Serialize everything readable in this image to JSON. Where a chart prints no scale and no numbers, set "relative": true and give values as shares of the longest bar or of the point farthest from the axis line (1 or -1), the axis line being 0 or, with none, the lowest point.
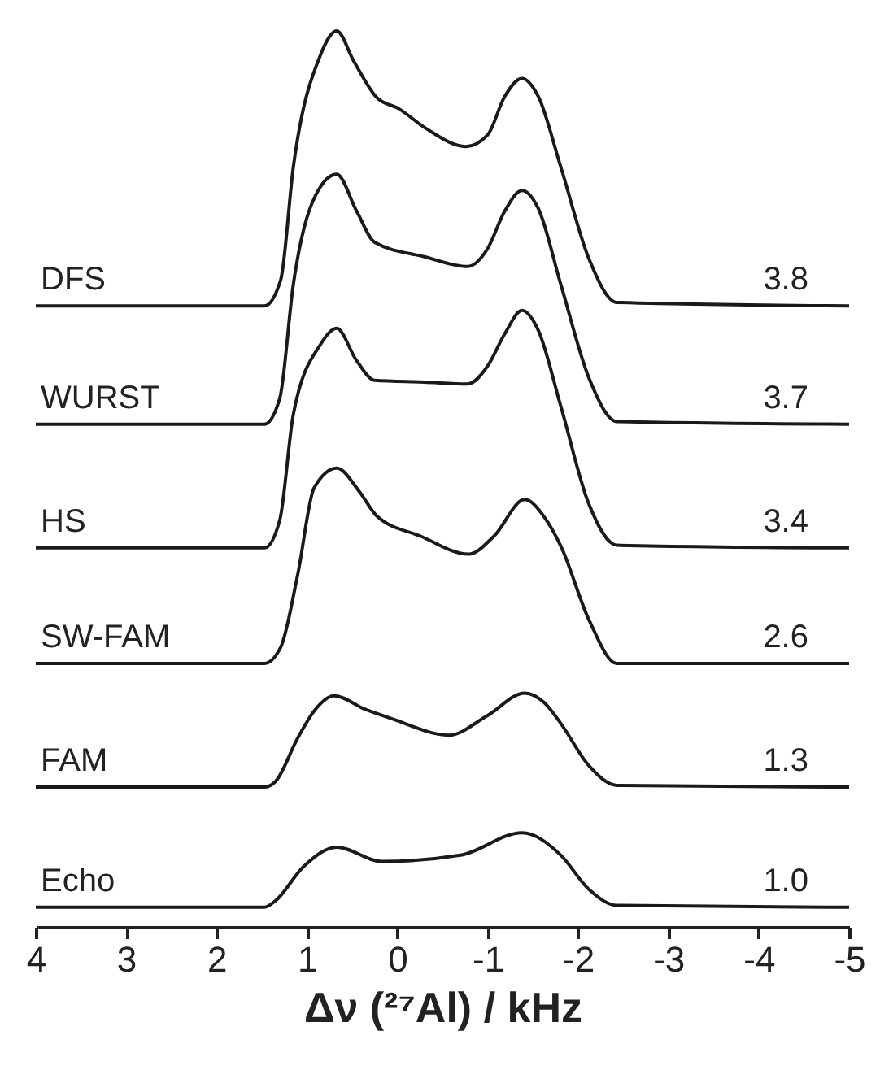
{
  "chart_data": {
    "type": "line",
    "relative": true,
    "xlabel": "Δν (²⁷Al) / kHz",
    "xlim": [
      4,
      -5
    ],
    "xticks": [
      4,
      3,
      2,
      1,
      0,
      -1,
      -2,
      -3,
      -4,
      -5
    ],
    "grid": false,
    "line_style": "solid",
    "marker": "none",
    "series": [
      {
        "name": "DFS",
        "color": "#1a1a1a",
        "x": [
          4,
          1.47,
          1.29,
          1.15,
          0.85,
          0.67,
          0.48,
          0.23,
          -0.02,
          -0.32,
          -0.76,
          -1.0,
          -1.19,
          -1.38,
          -1.56,
          -1.81,
          -2.12,
          -2.43,
          -5
        ],
        "values": [
          0.693,
          0.693,
          0.722,
          0.848,
          0.973,
          1.0,
          0.966,
          0.926,
          0.913,
          0.891,
          0.871,
          0.884,
          0.927,
          0.947,
          0.927,
          0.848,
          0.746,
          0.697,
          0.693
        ]
      },
      {
        "name": "WURST",
        "color": "#1a1a1a",
        "x": [
          4,
          1.47,
          1.3,
          1.15,
          0.85,
          0.67,
          0.45,
          0.25,
          -0.3,
          -0.78,
          -1.0,
          -1.19,
          -1.38,
          -1.56,
          -1.81,
          -2.12,
          -2.43,
          -5
        ],
        "values": [
          0.561,
          0.561,
          0.59,
          0.717,
          0.826,
          0.84,
          0.799,
          0.764,
          0.748,
          0.737,
          0.757,
          0.799,
          0.822,
          0.802,
          0.717,
          0.613,
          0.564,
          0.561
        ]
      },
      {
        "name": "HS",
        "color": "#1a1a1a",
        "x": [
          4,
          1.47,
          1.3,
          1.15,
          0.85,
          0.67,
          0.45,
          0.25,
          -0.3,
          -0.78,
          -1.0,
          -1.19,
          -1.38,
          -1.56,
          -1.81,
          -2.12,
          -2.43,
          -5
        ],
        "values": [
          0.423,
          0.423,
          0.454,
          0.572,
          0.65,
          0.668,
          0.632,
          0.61,
          0.608,
          0.606,
          0.626,
          0.662,
          0.688,
          0.666,
          0.581,
          0.472,
          0.426,
          0.423
        ]
      },
      {
        "name": "SW-FAM",
        "color": "#1a1a1a",
        "x": [
          4,
          1.47,
          1.29,
          1.1,
          0.92,
          0.67,
          0.42,
          0.23,
          -0.26,
          -0.79,
          -1.07,
          -1.41,
          -1.63,
          -1.81,
          -2.12,
          -2.43,
          -5
        ],
        "values": [
          0.294,
          0.294,
          0.312,
          0.394,
          0.49,
          0.512,
          0.486,
          0.459,
          0.436,
          0.416,
          0.436,
          0.477,
          0.457,
          0.425,
          0.343,
          0.294,
          0.294
        ]
      },
      {
        "name": "FAM",
        "color": "#1a1a1a",
        "x": [
          4,
          1.47,
          1.35,
          1.1,
          0.92,
          0.7,
          0.36,
          0.05,
          -0.57,
          -1.0,
          -1.41,
          -1.63,
          -1.81,
          -2.12,
          -2.43,
          -5
        ],
        "values": [
          0.156,
          0.156,
          0.162,
          0.211,
          0.241,
          0.258,
          0.243,
          0.232,
          0.214,
          0.236,
          0.261,
          0.25,
          0.227,
          0.18,
          0.158,
          0.156
        ]
      },
      {
        "name": "Echo",
        "color": "#1a1a1a",
        "x": [
          4,
          1.47,
          1.35,
          1.04,
          0.67,
          0.17,
          -0.7,
          -1.38,
          -1.81,
          -2.12,
          -2.43,
          -5
        ],
        "values": [
          0.022,
          0.022,
          0.029,
          0.067,
          0.089,
          0.073,
          0.08,
          0.105,
          0.08,
          0.042,
          0.024,
          0.022
        ]
      }
    ],
    "annotations": [
      "3.8",
      "3.7",
      "3.4",
      "2.6",
      "1.3",
      "1.0"
    ]
  }
}
